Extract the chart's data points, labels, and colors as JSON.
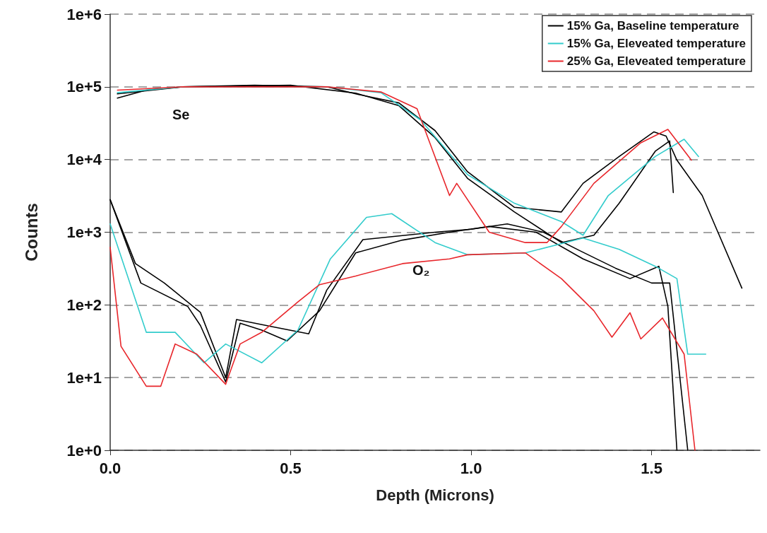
{
  "chart_data": {
    "type": "line",
    "xlabel": "Depth (Microns)",
    "ylabel": "Counts",
    "log": "y",
    "grid": "y",
    "legend": "top right",
    "marker": "none",
    "line_style": "solid",
    "xlim": [
      0,
      1.8
    ],
    "xticks": [
      {
        "value": 0,
        "label": "0.0"
      },
      {
        "value": 0.5,
        "label": "0.5"
      },
      {
        "value": 1,
        "label": "1.0"
      },
      {
        "value": 1.5,
        "label": "1.5"
      }
    ],
    "ylim": [
      1,
      1000000
    ],
    "yticks": [
      {
        "value": 1,
        "label": "1e+0"
      },
      {
        "value": 10,
        "label": "1e+1"
      },
      {
        "value": 100,
        "label": "1e+2"
      },
      {
        "value": 1000,
        "label": "1e+3"
      },
      {
        "value": 10000,
        "label": "1e+4"
      },
      {
        "value": 100000,
        "label": "1e+5"
      },
      {
        "value": 1000000,
        "label": "1e+6"
      }
    ],
    "annotations": [
      "Se",
      "O₂"
    ],
    "series": [
      {
        "name": "15% Ga, Baseline temperature",
        "color": "#000000",
        "x": [
          0.02,
          0.1,
          0.2,
          0.4,
          0.6,
          0.68,
          0.8,
          0.9,
          0.99,
          1.12,
          1.25,
          1.31,
          1.41,
          1.506,
          1.54,
          1.57,
          1.64,
          1.75
        ],
        "values": [
          70000,
          90000,
          100000,
          105000,
          100000,
          80000,
          60000,
          25000,
          6800,
          2200,
          1900,
          4700,
          11000,
          24000,
          21000,
          9800,
          3200,
          170
        ]
      },
      {
        "color": "#000000",
        "x": [
          0.02,
          0.2,
          0.5,
          0.68,
          0.8,
          0.9,
          0.99,
          1.12,
          1.25,
          1.34,
          1.41,
          1.51,
          1.55,
          1.56
        ],
        "values": [
          80000,
          100000,
          105000,
          82000,
          55000,
          20000,
          5500,
          1900,
          720,
          910,
          2500,
          13000,
          18000,
          3500
        ]
      },
      {
        "color": "#000000",
        "x": [
          0,
          0.085,
          0.215,
          0.25,
          0.32,
          0.36,
          0.42,
          0.49,
          0.58,
          0.68,
          0.81,
          0.94,
          1.05,
          1.18,
          1.31,
          1.44,
          1.52,
          1.545,
          1.57
        ],
        "values": [
          2800,
          200,
          95,
          52,
          8.7,
          56,
          45,
          32,
          83,
          520,
          780,
          1000,
          1200,
          1000,
          430,
          230,
          340,
          95,
          1
        ]
      },
      {
        "color": "#000000",
        "x": [
          0,
          0.07,
          0.15,
          0.25,
          0.32,
          0.35,
          0.45,
          0.55,
          0.6,
          0.7,
          0.8,
          0.9,
          1.0,
          1.1,
          1.2,
          1.3,
          1.4,
          1.5,
          1.55,
          1.6
        ],
        "values": [
          2800,
          370,
          200,
          79,
          10,
          63,
          50,
          40,
          160,
          790,
          890,
          1000,
          1100,
          1300,
          1000,
          560,
          320,
          200,
          200,
          1
        ]
      },
      {
        "name": "15% Ga, Eleveated temperature",
        "color": "#33cccc",
        "x": [
          0.02,
          0.2,
          0.6,
          0.75,
          0.86,
          0.99,
          1.12,
          1.25,
          1.31,
          1.38,
          1.51,
          1.59,
          1.63
        ],
        "values": [
          83000,
          100000,
          100000,
          83000,
          35000,
          6200,
          2500,
          1400,
          910,
          3200,
          11000,
          19000,
          11000
        ]
      },
      {
        "color": "#33cccc",
        "x": [
          0,
          0.1,
          0.18,
          0.26,
          0.32,
          0.42,
          0.52,
          0.61,
          0.71,
          0.78,
          0.9,
          0.99,
          1.15,
          1.31,
          1.41,
          1.51,
          1.57,
          1.6,
          1.65
        ],
        "values": [
          1300,
          42,
          42,
          16,
          29,
          16,
          45,
          430,
          1600,
          1800,
          720,
          490,
          520,
          830,
          580,
          340,
          230,
          21,
          21
        ]
      },
      {
        "name": "25% Ga, Eleveated temperature",
        "color": "#e8262b",
        "x": [
          0.02,
          0.2,
          0.6,
          0.75,
          0.85,
          0.94,
          0.96,
          1.05,
          1.15,
          1.21,
          1.25,
          1.34,
          1.47,
          1.545,
          1.61
        ],
        "values": [
          90000,
          100000,
          100000,
          85000,
          50000,
          3200,
          4700,
          1000,
          720,
          720,
          1200,
          4700,
          17000,
          26000,
          9800
        ]
      },
      {
        "color": "#e8262b",
        "x": [
          0,
          0.03,
          0.1,
          0.14,
          0.18,
          0.24,
          0.32,
          0.36,
          0.42,
          0.52,
          0.58,
          0.68,
          0.81,
          0.94,
          0.99,
          1.15,
          1.25,
          1.34,
          1.39,
          1.44,
          1.47,
          1.53,
          1.59,
          1.62
        ],
        "values": [
          620,
          27,
          7.6,
          7.6,
          29,
          21,
          8.1,
          29,
          42,
          110,
          190,
          250,
          370,
          430,
          490,
          520,
          230,
          83,
          36,
          78,
          34,
          66,
          21,
          1
        ]
      }
    ]
  }
}
